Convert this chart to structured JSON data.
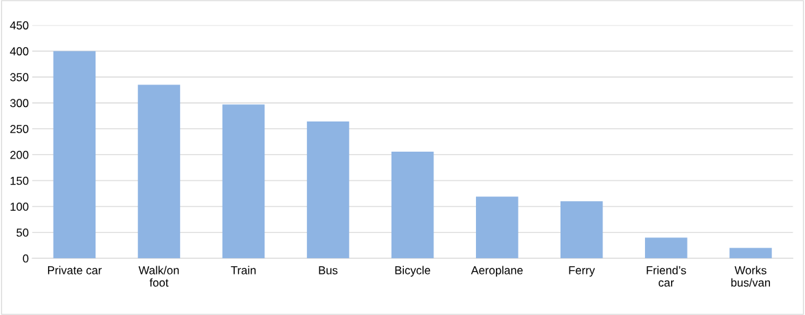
{
  "chart_data": {
    "type": "bar",
    "categories": [
      "Private car",
      "Walk/on\nfoot",
      "Train",
      "Bus",
      "Bicycle",
      "Aeroplane",
      "Ferry",
      "Friend’s\ncar",
      "Works\nbus/van"
    ],
    "values": [
      400,
      335,
      297,
      264,
      206,
      119,
      110,
      40,
      20
    ],
    "color": "#8eb4e3",
    "ylim": [
      0,
      450
    ],
    "yticks": [
      0,
      50,
      100,
      150,
      200,
      250,
      300,
      350,
      400,
      450
    ],
    "grid": "y"
  }
}
